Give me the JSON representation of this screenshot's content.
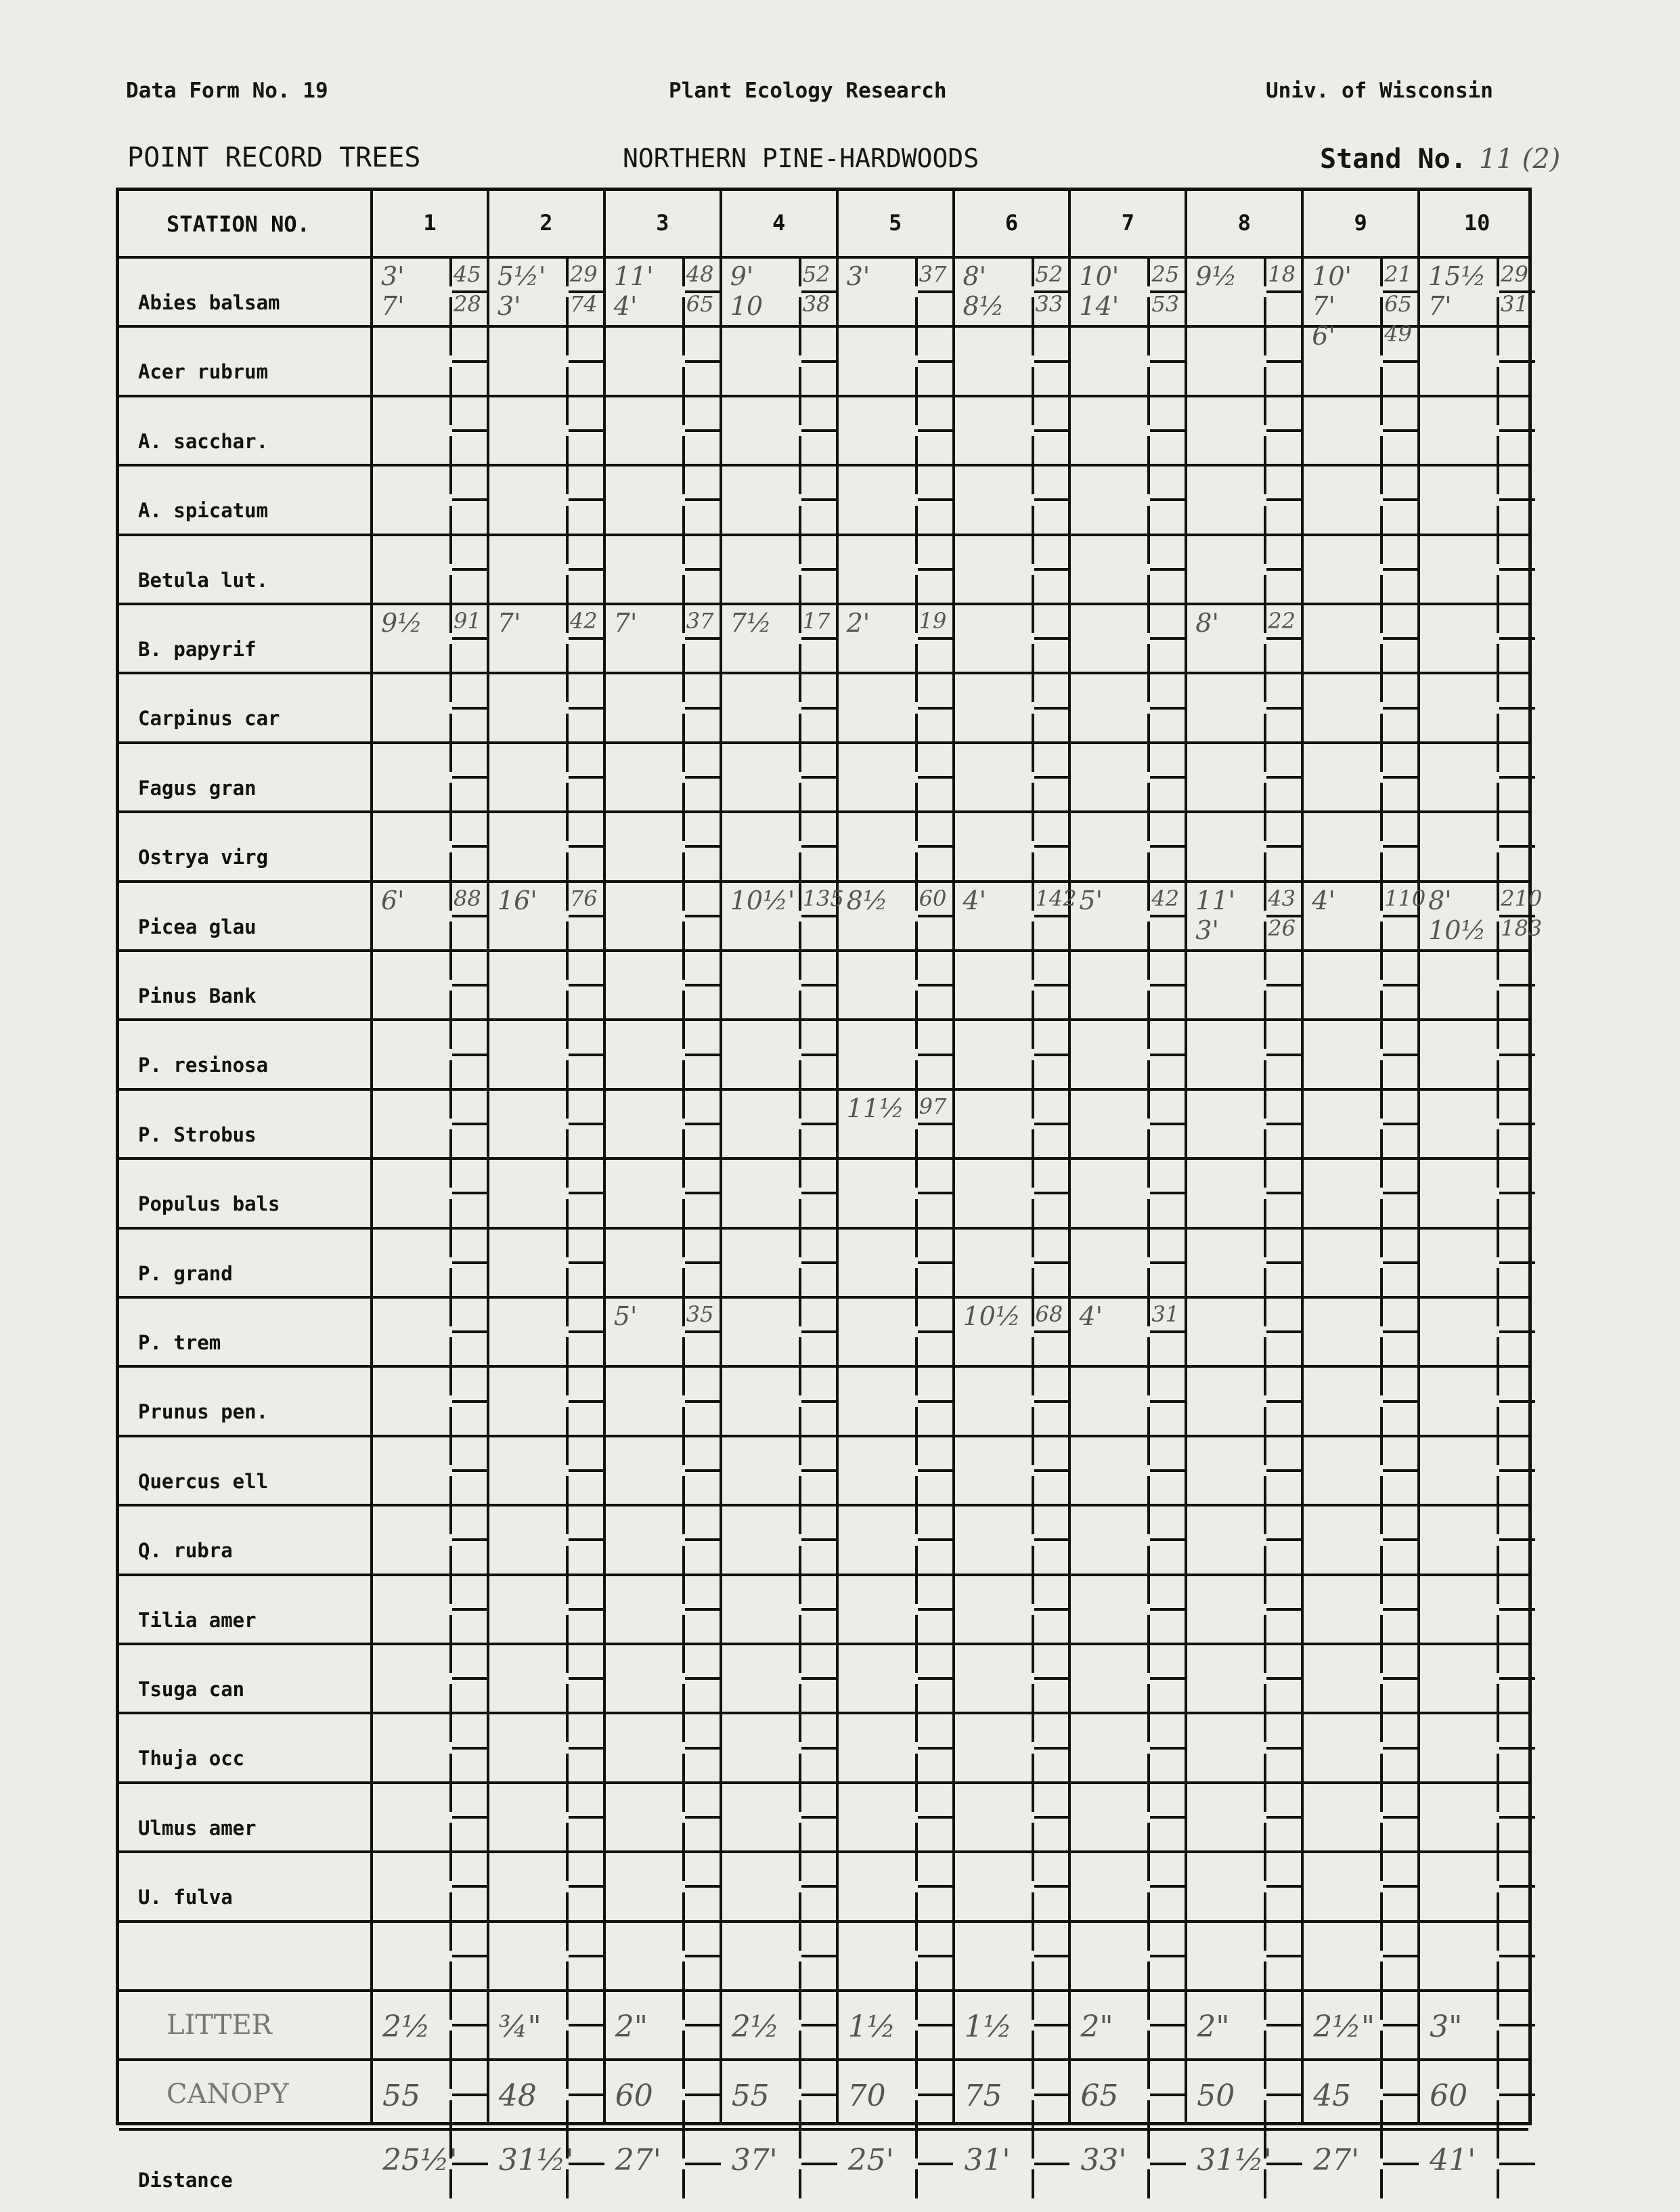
{
  "header": {
    "form_no": "Data Form No. 19",
    "org": "Plant Ecology Research",
    "univ": "Univ. of Wisconsin",
    "record_type": "POINT RECORD TREES",
    "forest_type": "NORTHERN PINE-HARDWOODS",
    "stand_label": "Stand No.",
    "stand_value": "11 (2)"
  },
  "table": {
    "station_header": "STATION NO.",
    "stations": [
      "1",
      "2",
      "3",
      "4",
      "5",
      "6",
      "7",
      "8",
      "9",
      "10"
    ],
    "species": [
      {
        "name": "Abies balsam",
        "cells": [
          [
            [
              "3'",
              "45"
            ],
            [
              "7'",
              "28"
            ]
          ],
          [
            [
              "5½'",
              "29"
            ],
            [
              "3'",
              "74"
            ]
          ],
          [
            [
              "11'",
              "48"
            ],
            [
              "4'",
              "65"
            ]
          ],
          [
            [
              "9'",
              "52"
            ],
            [
              "10",
              "38"
            ]
          ],
          [
            [
              "3'",
              "37"
            ]
          ],
          [
            [
              "8'",
              "52"
            ],
            [
              "8½",
              "33"
            ]
          ],
          [
            [
              "10'",
              "25"
            ],
            [
              "14'",
              "53"
            ]
          ],
          [
            [
              "9½",
              "18"
            ]
          ],
          [
            [
              "10'",
              "21"
            ],
            [
              "7'",
              "65"
            ],
            [
              "6'",
              "49"
            ]
          ],
          [
            [
              "15½",
              "29"
            ],
            [
              "7'",
              "31"
            ]
          ]
        ]
      },
      {
        "name": "Acer rubrum",
        "cells": []
      },
      {
        "name": "A. sacchar.",
        "cells": []
      },
      {
        "name": "A. spicatum",
        "cells": []
      },
      {
        "name": "Betula lut.",
        "cells": []
      },
      {
        "name": "B. papyrif",
        "cells": [
          [
            [
              "9½",
              "91"
            ]
          ],
          [
            [
              "7'",
              "42"
            ]
          ],
          [
            [
              "7'",
              "37"
            ]
          ],
          [
            [
              "7½",
              "17"
            ]
          ],
          [
            [
              "2'",
              "19"
            ]
          ],
          [],
          [],
          [
            [
              "8'",
              "22"
            ]
          ],
          [],
          []
        ]
      },
      {
        "name": "Carpinus car",
        "cells": []
      },
      {
        "name": "Fagus gran",
        "cells": []
      },
      {
        "name": "Ostrya virg",
        "cells": []
      },
      {
        "name": "Picea glau",
        "cells": [
          [
            [
              "6'",
              "88"
            ]
          ],
          [
            [
              "16'",
              "76"
            ]
          ],
          [],
          [
            [
              "10½'",
              "135"
            ]
          ],
          [
            [
              "8½",
              "60"
            ]
          ],
          [
            [
              "4'",
              "142"
            ]
          ],
          [
            [
              "5'",
              "42"
            ]
          ],
          [
            [
              "11'",
              "43"
            ],
            [
              "3'",
              "26"
            ]
          ],
          [
            [
              "4'",
              "110"
            ]
          ],
          [
            [
              "8'",
              "210"
            ],
            [
              "10½",
              "183"
            ]
          ]
        ]
      },
      {
        "name": "Pinus Bank",
        "cells": []
      },
      {
        "name": "P. resinosa",
        "cells": []
      },
      {
        "name": "P. Strobus",
        "cells": [
          [],
          [],
          [],
          [],
          [
            [
              "11½",
              "97"
            ]
          ],
          [],
          [],
          [],
          [],
          []
        ]
      },
      {
        "name": "Populus bals",
        "cells": []
      },
      {
        "name": "P. grand",
        "cells": []
      },
      {
        "name": "P. trem",
        "cells": [
          [],
          [],
          [
            [
              "5'",
              "35"
            ]
          ],
          [],
          [],
          [
            [
              "10½",
              "68"
            ]
          ],
          [
            [
              "4'",
              "31"
            ]
          ],
          [],
          [],
          []
        ]
      },
      {
        "name": "Prunus pen.",
        "cells": []
      },
      {
        "name": "Quercus ell",
        "cells": []
      },
      {
        "name": "Q. rubra",
        "cells": []
      },
      {
        "name": "Tilia amer",
        "cells": []
      },
      {
        "name": "Tsuga can",
        "cells": []
      },
      {
        "name": "Thuja occ",
        "cells": []
      },
      {
        "name": "Ulmus amer",
        "cells": []
      },
      {
        "name": "U. fulva",
        "cells": []
      },
      {
        "name": "",
        "cells": []
      }
    ],
    "litter": {
      "label": "LITTER",
      "values": [
        "2½",
        "¾\"",
        "2\"",
        "2½",
        "1½",
        "1½",
        "2\"",
        "2\"",
        "2½\"",
        "3\""
      ]
    },
    "canopy": {
      "label": "CANOPY",
      "values": [
        "55",
        "48",
        "60",
        "55",
        "70",
        "75",
        "65",
        "50",
        "45",
        "60"
      ]
    },
    "distance": {
      "label": "Distance",
      "values": [
        "25½'",
        "31½'",
        "27'",
        "37'",
        "25'",
        "31'",
        "33'",
        "31½'",
        "27'",
        "41'"
      ]
    }
  }
}
